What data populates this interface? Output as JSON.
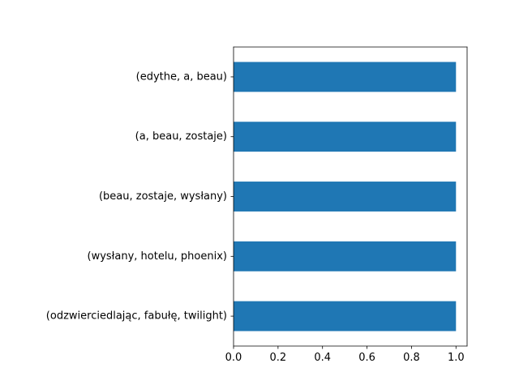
{
  "chart_data": {
    "type": "bar",
    "orientation": "horizontal",
    "categories": [
      "(edythe, a, beau)",
      "(a, beau, zostaje)",
      "(beau, zostaje, wysłany)",
      "(wysłany, hotelu, phoenix)",
      "(odzwierciedlając, fabułę, twilight)"
    ],
    "values": [
      1.0,
      1.0,
      1.0,
      1.0,
      1.0
    ],
    "xlim": [
      0.0,
      1.05
    ],
    "xticks": [
      0.0,
      0.2,
      0.4,
      0.6,
      0.8,
      1.0
    ],
    "xtick_labels": [
      "0.0",
      "0.2",
      "0.4",
      "0.6",
      "0.8",
      "1.0"
    ],
    "grid": false,
    "legend": false,
    "bar_color": "#1f77b4"
  }
}
